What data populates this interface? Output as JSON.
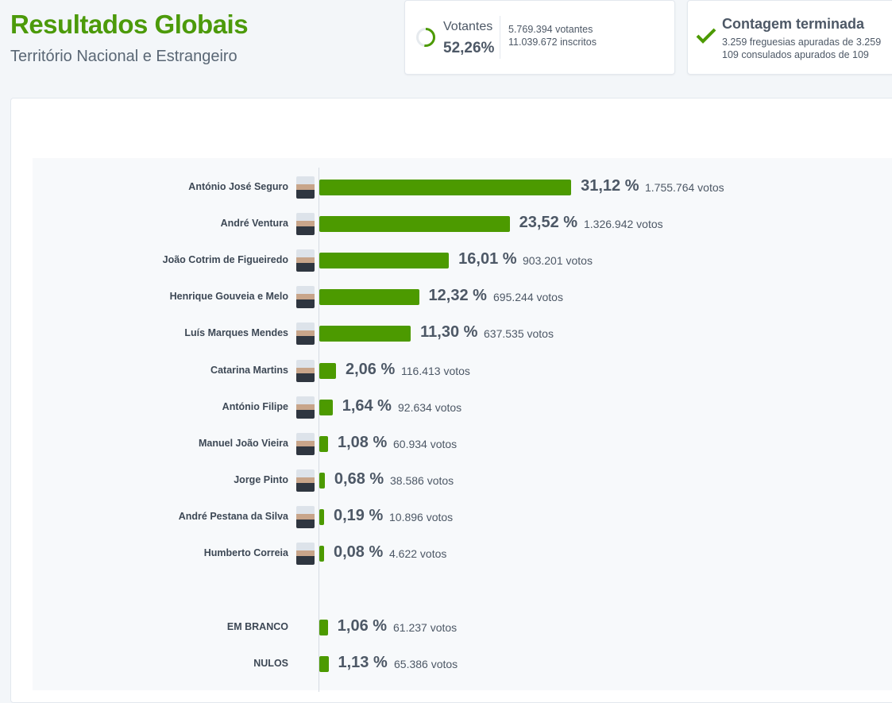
{
  "header": {
    "title": "Resultados Globais",
    "subtitle": "Território Nacional e Estrangeiro"
  },
  "turnout_card": {
    "label": "Votantes",
    "percent": "52,26%",
    "turnout_fraction": 0.5226,
    "voters": "5.769.394 votantes",
    "registered": "11.039.672 inscritos",
    "accent": "#4c9a00"
  },
  "count_card": {
    "icon": "check-icon",
    "title": "Contagem terminada",
    "parishes": "3.259 freguesias apuradas de 3.259",
    "consulates": "109 consulados apurados de 109"
  },
  "chart_data": {
    "type": "bar",
    "orientation": "horizontal",
    "color": "#4c9a00",
    "categories": [
      "António José Seguro",
      "André Ventura",
      "João Cotrim de Figueiredo",
      "Henrique Gouveia e Melo",
      "Luís Marques Mendes",
      "Catarina Martins",
      "António Filipe",
      "Manuel João Vieira",
      "Jorge Pinto",
      "André Pestana da Silva",
      "Humberto Correia"
    ],
    "values": [
      31.12,
      23.52,
      16.01,
      12.32,
      11.3,
      2.06,
      1.64,
      1.08,
      0.68,
      0.19,
      0.08
    ],
    "pct_labels": [
      "31,12 %",
      "23,52 %",
      "16,01 %",
      "12,32 %",
      "11,30 %",
      "2,06 %",
      "1,64 %",
      "1,08 %",
      "0,68 %",
      "0,19 %",
      "0,08 %"
    ],
    "vote_labels": [
      "1.755.764 votos",
      "1.326.942 votos",
      "903.201 votos",
      "695.244 votos",
      "637.535 votos",
      "116.413 votos",
      "92.634 votos",
      "60.934 votos",
      "38.586 votos",
      "10.896 votos",
      "4.622 votos"
    ],
    "other": [
      {
        "name": "EM BRANCO",
        "value": 1.06,
        "pct_label": "1,06 %",
        "votes": "61.237 votos"
      },
      {
        "name": "NULOS",
        "value": 1.13,
        "pct_label": "1,13 %",
        "votes": "65.386 votos"
      }
    ]
  }
}
